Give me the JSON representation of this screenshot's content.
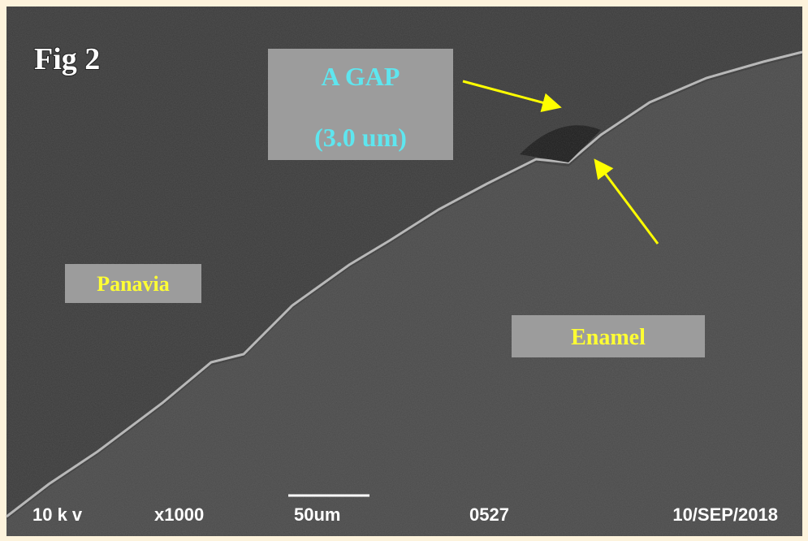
{
  "figure_label": "Fig 2",
  "annotations": {
    "gap": [
      "A GAP",
      "(3.0 um)"
    ],
    "panavia": "Panavia",
    "enamel": "Enamel"
  },
  "info_bar": {
    "voltage": "10 k v",
    "magnification": "x1000",
    "scale": "50um",
    "number": "0527",
    "date": "10/SEP/2018"
  }
}
